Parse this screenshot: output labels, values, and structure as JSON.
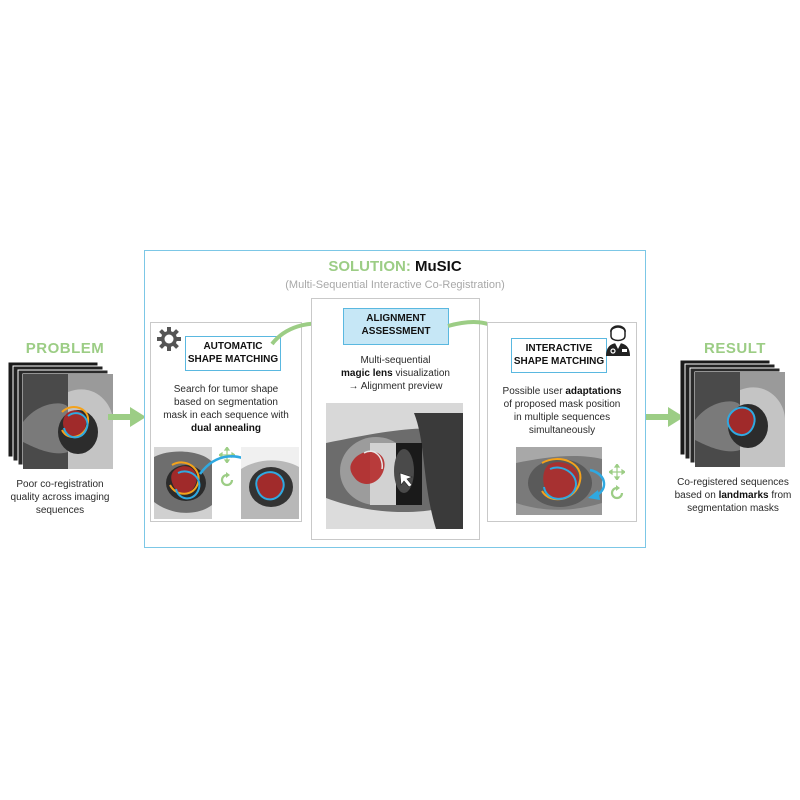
{
  "problem": {
    "heading": "PROBLEM",
    "caption_lines": [
      "Poor co-registration",
      "quality across imaging",
      "sequences"
    ]
  },
  "solution": {
    "title_prefix": "SOLUTION:",
    "title_name": "MuSIC",
    "subtitle": "(Multi-Sequential Interactive Co-Registration)"
  },
  "automatic": {
    "label_lines": [
      "AUTOMATIC",
      "SHAPE MATCHING"
    ],
    "desc_plain": [
      "Search for tumor shape",
      "based on segmentation",
      "mask in each sequence with"
    ],
    "desc_bold": "dual annealing",
    "icon": "gear-icon"
  },
  "alignment": {
    "label_lines": [
      "ALIGNMENT",
      "ASSESSMENT"
    ],
    "line1": "Multi-sequential",
    "line2_bold": "magic lens",
    "line2_plain": " visualization",
    "line3": "→ Alignment preview"
  },
  "interactive": {
    "label_lines": [
      "INTERACTIVE",
      "SHAPE MATCHING"
    ],
    "line1_plain": "Possible user ",
    "line1_bold": "adaptations",
    "lines_rest": [
      "of proposed mask position",
      "in multiple sequences",
      "simultaneously"
    ],
    "icon": "doctor-icon"
  },
  "result": {
    "heading": "RESULT",
    "line1": "Co-registered sequences",
    "line2_plain": "based on ",
    "line2_bold": "landmarks",
    "line2_end": " from",
    "line3": "segmentation masks"
  },
  "colors": {
    "accent_green": "#9ccd85",
    "frame_blue": "#7cc7e6",
    "mask_blue": "#2fa9e1",
    "mask_orange": "#f4a21b",
    "tumor_red": "#b52a2a"
  }
}
